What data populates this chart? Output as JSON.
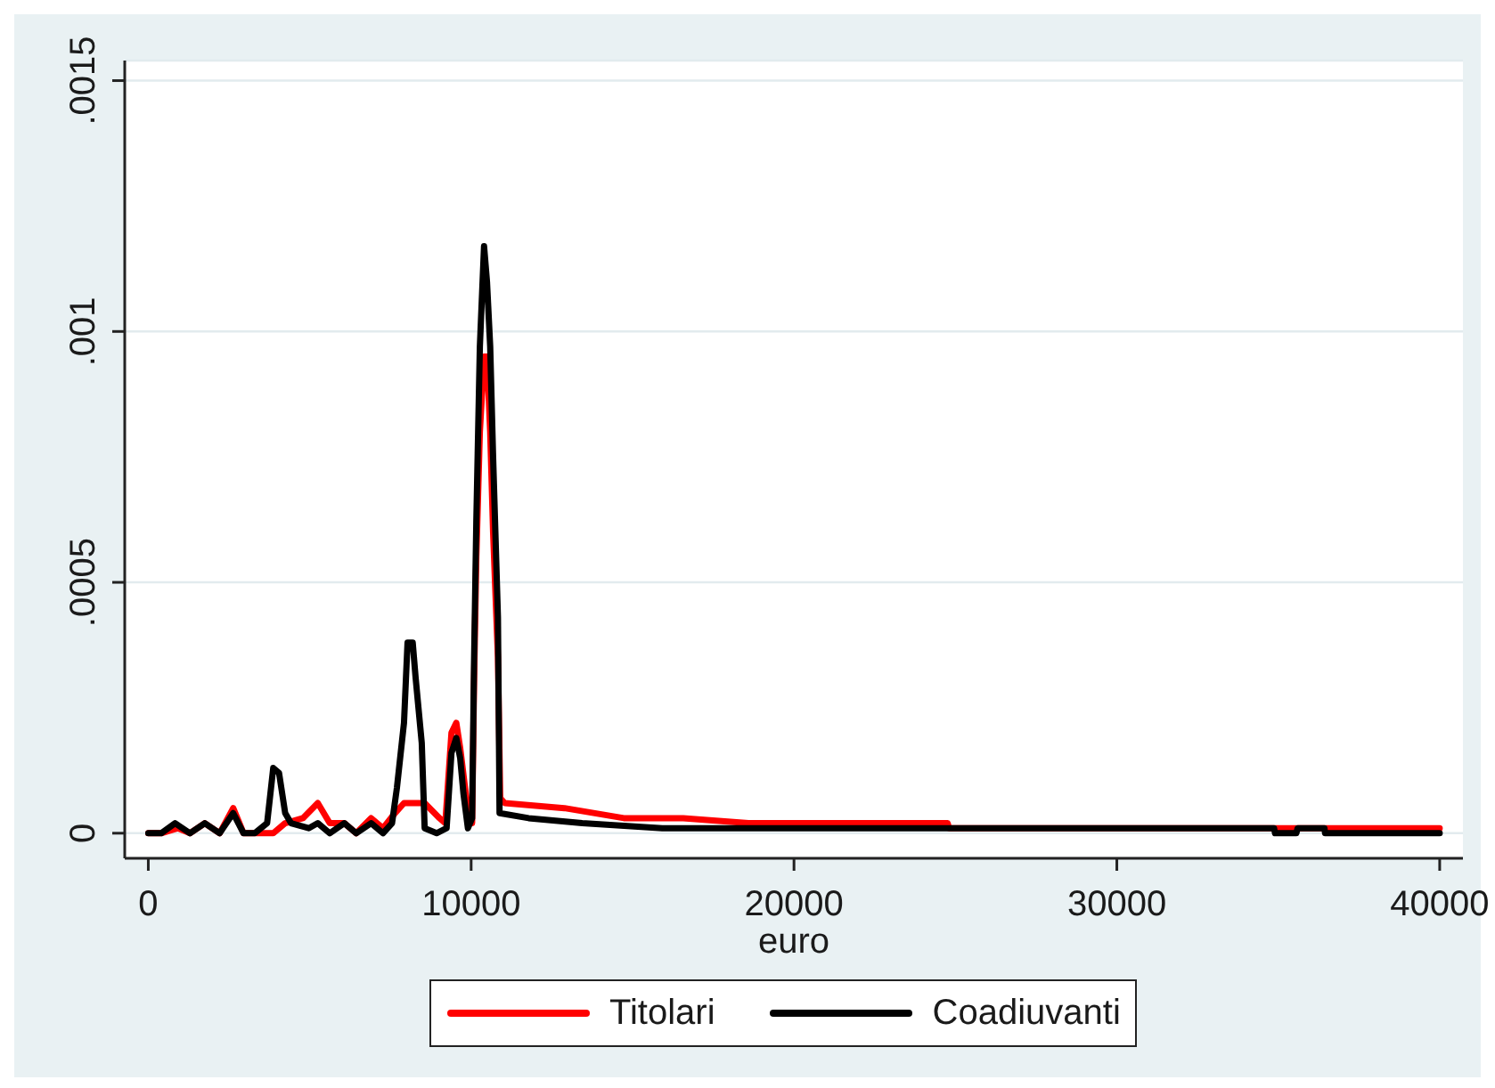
{
  "chart_data": {
    "type": "line",
    "xlabel": "euro",
    "xlim": [
      -730,
      40720
    ],
    "xticks": [
      0,
      10000,
      20000,
      30000,
      40000
    ],
    "ylim": [
      -5e-05,
      0.00154
    ],
    "yticks": [
      0,
      {
        "value": 0.0005,
        "label": ".0005"
      },
      {
        "value": 0.001,
        "label": ".001"
      },
      {
        "value": 0.0015,
        "label": ".0015"
      }
    ],
    "grid": "y",
    "legend": "bottom",
    "series": [
      {
        "name": "Titolari",
        "color": "#ff0000",
        "x": [
          0,
          400,
          920,
          1290,
          1750,
          2210,
          2630,
          2950,
          3680,
          3870,
          4240,
          4790,
          5250,
          5620,
          6070,
          6440,
          6900,
          7270,
          7640,
          7920,
          8280,
          8560,
          9020,
          9200,
          9390,
          9540,
          9660,
          9850,
          10030,
          10090,
          10160,
          10270,
          10400,
          10490,
          10590,
          10680,
          10830,
          10900,
          11040,
          12890,
          14730,
          16570,
          18590,
          20070,
          24760,
          24800,
          34870,
          34900,
          35560,
          35600,
          36430,
          36450,
          40000
        ],
        "values": [
          0,
          0,
          1e-05,
          0,
          2e-05,
          0,
          5e-05,
          0,
          0,
          0,
          2e-05,
          3e-05,
          6e-05,
          2e-05,
          2e-05,
          0,
          3e-05,
          1e-05,
          4e-05,
          6e-05,
          6e-05,
          6e-05,
          3e-05,
          2e-05,
          0.0002,
          0.00022,
          0.00017,
          7e-05,
          2e-05,
          0.0003,
          0.00055,
          0.0008,
          0.00095,
          0.00095,
          0.0008,
          0.0006,
          0.00035,
          7e-05,
          6e-05,
          5e-05,
          3e-05,
          3e-05,
          2e-05,
          2e-05,
          2e-05,
          1e-05,
          1e-05,
          1e-05,
          1e-05,
          1e-05,
          1e-05,
          1e-05,
          1e-05
        ]
      },
      {
        "name": "Coadiuvanti",
        "color": "#000000",
        "x": [
          0,
          400,
          830,
          1290,
          1750,
          2210,
          2630,
          2950,
          3300,
          3680,
          3870,
          4050,
          4240,
          4420,
          4970,
          5250,
          5620,
          6070,
          6440,
          6900,
          7270,
          7550,
          7700,
          7920,
          8030,
          8190,
          8280,
          8470,
          8560,
          8930,
          9240,
          9390,
          9540,
          9660,
          9760,
          9900,
          10030,
          10090,
          10160,
          10270,
          10400,
          10490,
          10590,
          10680,
          10830,
          10880,
          11780,
          13440,
          15920,
          20000,
          25000,
          34870,
          34900,
          35560,
          35600,
          36430,
          36450,
          40000
        ],
        "values": [
          0,
          0,
          2e-05,
          0,
          2e-05,
          0,
          4e-05,
          0,
          0,
          2e-05,
          0.00013,
          0.00012,
          4e-05,
          2e-05,
          1e-05,
          2e-05,
          0,
          2e-05,
          0,
          2e-05,
          0,
          2e-05,
          9e-05,
          0.00022,
          0.00038,
          0.00038,
          0.00031,
          0.00018,
          1e-05,
          0,
          1e-05,
          0.00016,
          0.00019,
          0.00015,
          8e-05,
          1e-05,
          3e-05,
          0.00034,
          0.00062,
          0.00097,
          0.00117,
          0.0011,
          0.00097,
          0.00075,
          0.00043,
          4e-05,
          3e-05,
          2e-05,
          1e-05,
          1e-05,
          1e-05,
          1e-05,
          0,
          0,
          1e-05,
          1e-05,
          0,
          0
        ]
      }
    ]
  }
}
